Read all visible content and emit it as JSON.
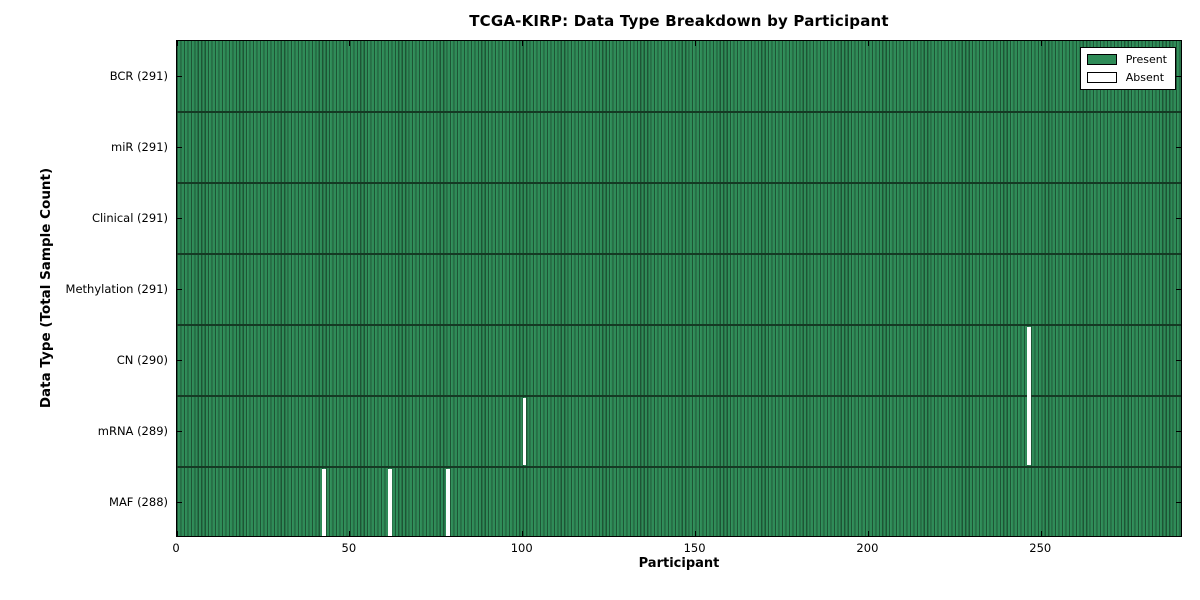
{
  "chart_data": {
    "type": "heatmap",
    "title": "TCGA-KIRP: Data Type Breakdown by Participant",
    "xlabel": "Participant",
    "ylabel": "Data Type (Total Sample Count)",
    "x_ticks": [
      0,
      50,
      100,
      150,
      200,
      250
    ],
    "x_range": [
      0,
      291
    ],
    "n_participants": 291,
    "grid": false,
    "legend_position": "upper-right",
    "rows": [
      {
        "label": "BCR (291)",
        "data_type": "BCR",
        "total_samples": 291,
        "absent_participants": []
      },
      {
        "label": "miR (291)",
        "data_type": "miR",
        "total_samples": 291,
        "absent_participants": []
      },
      {
        "label": "Clinical (291)",
        "data_type": "Clinical",
        "total_samples": 291,
        "absent_participants": []
      },
      {
        "label": "Methylation (291)",
        "data_type": "Methylation",
        "total_samples": 291,
        "absent_participants": []
      },
      {
        "label": "CN (290)",
        "data_type": "CN",
        "total_samples": 290,
        "absent_participants": [
          246
        ]
      },
      {
        "label": "mRNA (289)",
        "data_type": "mRNA",
        "total_samples": 289,
        "absent_participants": [
          100,
          246
        ]
      },
      {
        "label": "MAF (288)",
        "data_type": "MAF",
        "total_samples": 288,
        "absent_participants": [
          42,
          61,
          78
        ]
      }
    ],
    "legend": [
      {
        "label": "Present",
        "color": "#2e8b57"
      },
      {
        "label": "Absent",
        "color": "#ffffff"
      }
    ],
    "colors": {
      "present": "#2e8b57",
      "present_light": "#37925f",
      "present_edge": "#1d5535",
      "absent": "#ffffff",
      "row_divider": "#153a24",
      "axis": "#000000"
    }
  }
}
